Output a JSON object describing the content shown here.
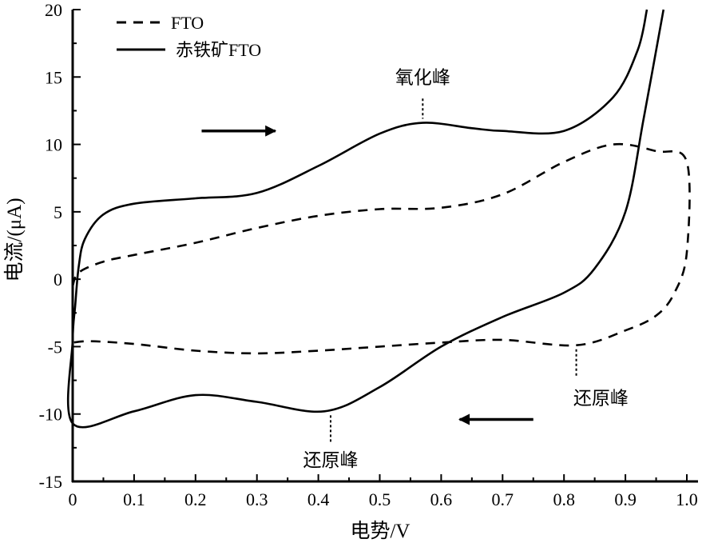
{
  "chart_data": {
    "type": "line",
    "title": "",
    "xlabel": "电势/V",
    "ylabel": "电流/(μA)",
    "xlim": [
      0,
      1.0
    ],
    "ylim": [
      -15,
      20
    ],
    "xticks": [
      "0",
      "0.1",
      "0.2",
      "0.3",
      "0.4",
      "0.5",
      "0.6",
      "0.7",
      "0.8",
      "0.9",
      "1.0"
    ],
    "yticks": [
      "-15",
      "-10",
      "-5",
      "0",
      "5",
      "10",
      "15",
      "20"
    ],
    "grid": false,
    "legend_position": "top-left",
    "series": [
      {
        "name": "FTO",
        "style": "dashed",
        "color": "#000000",
        "points": [
          [
            0,
            -0.5
          ],
          [
            0.01,
            0.5
          ],
          [
            0.05,
            1.3
          ],
          [
            0.1,
            1.8
          ],
          [
            0.2,
            2.7
          ],
          [
            0.3,
            3.8
          ],
          [
            0.4,
            4.7
          ],
          [
            0.5,
            5.2
          ],
          [
            0.6,
            5.3
          ],
          [
            0.7,
            6.3
          ],
          [
            0.8,
            8.7
          ],
          [
            0.88,
            10
          ],
          [
            0.95,
            9.5
          ],
          [
            1.0,
            8.7
          ],
          [
            1.0,
            2
          ],
          [
            0.98,
            -1
          ],
          [
            0.95,
            -2.7
          ],
          [
            0.9,
            -3.8
          ],
          [
            0.82,
            -4.9
          ],
          [
            0.7,
            -4.5
          ],
          [
            0.6,
            -4.7
          ],
          [
            0.5,
            -5.0
          ],
          [
            0.4,
            -5.3
          ],
          [
            0.3,
            -5.5
          ],
          [
            0.2,
            -5.3
          ],
          [
            0.1,
            -4.8
          ],
          [
            0.03,
            -4.6
          ],
          [
            0,
            -4.7
          ]
        ]
      },
      {
        "name": "赤铁矿FTO",
        "style": "solid",
        "color": "#000000",
        "points": [
          [
            0.935,
            20
          ],
          [
            0.92,
            17
          ],
          [
            0.88,
            13.5
          ],
          [
            0.8,
            11
          ],
          [
            0.7,
            11
          ],
          [
            0.65,
            11.2
          ],
          [
            0.57,
            11.6
          ],
          [
            0.5,
            10.8
          ],
          [
            0.4,
            8.4
          ],
          [
            0.3,
            6.4
          ],
          [
            0.2,
            6.0
          ],
          [
            0.1,
            5.6
          ],
          [
            0.05,
            4.8
          ],
          [
            0.02,
            3
          ],
          [
            0.01,
            1
          ],
          [
            0.004,
            -2
          ],
          [
            0,
            -4.5
          ],
          [
            0,
            -10.7
          ],
          [
            0.1,
            -9.8
          ],
          [
            0.2,
            -8.6
          ],
          [
            0.3,
            -9.1
          ],
          [
            0.41,
            -9.8
          ],
          [
            0.5,
            -8
          ],
          [
            0.6,
            -5
          ],
          [
            0.7,
            -2.8
          ],
          [
            0.8,
            -1
          ],
          [
            0.85,
            0.8
          ],
          [
            0.9,
            5
          ],
          [
            0.93,
            12
          ],
          [
            0.962,
            20
          ]
        ]
      }
    ],
    "annotations": [
      {
        "text": "氧化峰",
        "x": 0.57,
        "y": 15,
        "line_from": [
          0.57,
          13.4
        ],
        "line_to": [
          0.57,
          11.9
        ]
      },
      {
        "text": "还原峰",
        "x": 0.86,
        "y": -8.8,
        "line_from": [
          0.82,
          -5.2
        ],
        "line_to": [
          0.82,
          -7.3
        ]
      },
      {
        "text": "还原峰",
        "x": 0.42,
        "y": -13.4,
        "line_from": [
          0.42,
          -10.1
        ],
        "line_to": [
          0.42,
          -12.1
        ]
      }
    ],
    "arrows": [
      {
        "direction": "right",
        "from": [
          0.21,
          11
        ],
        "to": [
          0.33,
          11
        ]
      },
      {
        "direction": "left",
        "from": [
          0.75,
          -10.4
        ],
        "to": [
          0.63,
          -10.4
        ]
      }
    ]
  }
}
